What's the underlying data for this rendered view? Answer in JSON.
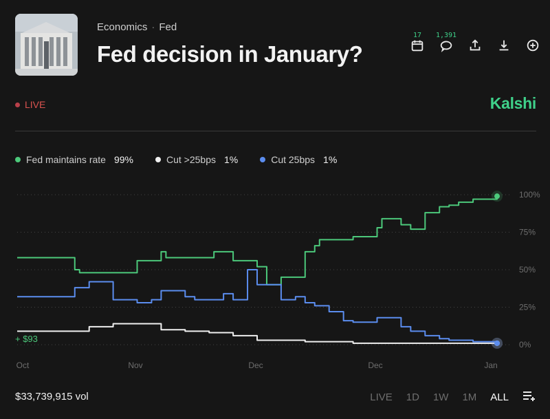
{
  "header": {
    "category": "Economics",
    "subcategory": "Fed",
    "title": "Fed decision in January?"
  },
  "actions": {
    "calendar_count": "17",
    "comments_count": "1,391"
  },
  "status": {
    "live_label": "LIVE"
  },
  "brand": "Kalshi",
  "legend": [
    {
      "label": "Fed maintains rate",
      "value": "99%",
      "color": "#4cc97b"
    },
    {
      "label": "Cut >25bps",
      "value": "1%",
      "color": "#f0f0f0"
    },
    {
      "label": "Cut 25bps",
      "value": "1%",
      "color": "#5b8def"
    }
  ],
  "chart_data": {
    "type": "line",
    "x_ticks": [
      "Oct",
      "Nov",
      "Dec",
      "Dec",
      "Jan"
    ],
    "y_ticks": [
      "100%",
      "75%",
      "50%",
      "25%",
      "0%"
    ],
    "ylim": [
      0,
      100
    ],
    "position_label": "+ $93",
    "grid": true,
    "series": [
      {
        "name": "Fed maintains rate",
        "color": "#4cc97b",
        "x": [
          0,
          5,
          10,
          12,
          13,
          20,
          25,
          28,
          30,
          31,
          35,
          40,
          41,
          45,
          50,
          52,
          55,
          60,
          62,
          63,
          66,
          70,
          75,
          76,
          80,
          82,
          85,
          88,
          90,
          92,
          95,
          100
        ],
        "y": [
          58,
          58,
          58,
          50,
          48,
          48,
          56,
          56,
          62,
          58,
          58,
          58,
          62,
          56,
          52,
          40,
          45,
          62,
          66,
          70,
          70,
          72,
          78,
          84,
          80,
          77,
          88,
          92,
          93,
          95,
          97,
          99
        ]
      },
      {
        "name": "Cut >25bps",
        "color": "#f0f0f0",
        "x": [
          0,
          5,
          10,
          15,
          20,
          25,
          30,
          35,
          38,
          40,
          45,
          50,
          55,
          60,
          65,
          70,
          80,
          90,
          100
        ],
        "y": [
          9,
          9,
          9,
          12,
          14,
          14,
          10,
          9,
          9,
          8,
          6,
          3,
          3,
          2,
          2,
          1,
          1,
          1,
          1
        ]
      },
      {
        "name": "Cut 25bps",
        "color": "#5b8def",
        "x": [
          0,
          5,
          10,
          12,
          15,
          18,
          20,
          25,
          28,
          30,
          35,
          37,
          40,
          43,
          45,
          48,
          50,
          55,
          58,
          60,
          62,
          65,
          68,
          70,
          75,
          80,
          82,
          85,
          88,
          90,
          95,
          100
        ],
        "y": [
          32,
          32,
          32,
          38,
          42,
          42,
          30,
          28,
          30,
          36,
          32,
          30,
          30,
          34,
          30,
          50,
          40,
          30,
          32,
          28,
          26,
          22,
          16,
          15,
          18,
          12,
          9,
          6,
          4,
          3,
          2,
          1
        ]
      }
    ]
  },
  "footer": {
    "volume": "$33,739,915 vol",
    "ranges": [
      "LIVE",
      "1D",
      "1W",
      "1M",
      "ALL"
    ],
    "active_range": "ALL"
  }
}
